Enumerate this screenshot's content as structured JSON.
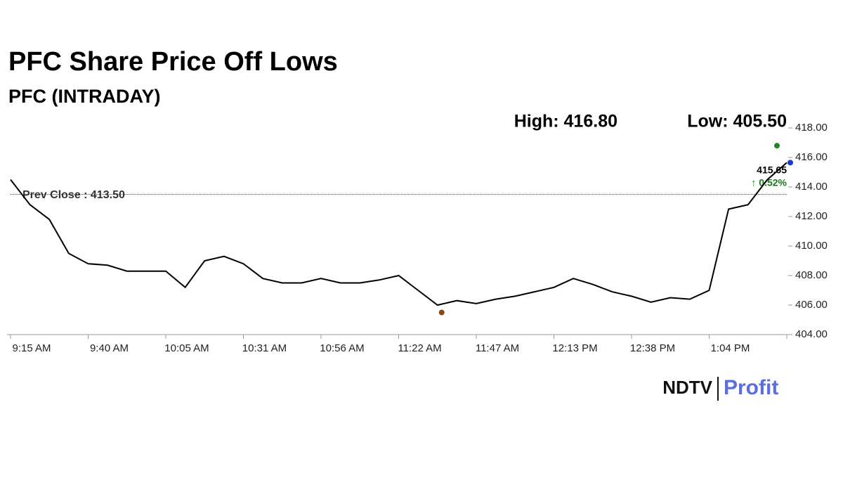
{
  "chart_data": {
    "type": "line",
    "title": "PFC Share Price Off Lows",
    "subtitle": "PFC (INTRADAY)",
    "categories": [
      "9:15 AM",
      null,
      null,
      null,
      "9:40 AM",
      null,
      null,
      null,
      "10:05 AM",
      null,
      null,
      null,
      "10:31 AM",
      null,
      null,
      null,
      "10:56 AM",
      null,
      null,
      null,
      "11:22 AM",
      null,
      null,
      null,
      "11:47 AM",
      null,
      null,
      null,
      "12:13 PM",
      null,
      null,
      null,
      "12:38 PM",
      null,
      null,
      null,
      "1:04 PM",
      null,
      null,
      null,
      null
    ],
    "series": [
      {
        "name": "PFC",
        "color": "#000000",
        "values": [
          414.5,
          412.8,
          411.8,
          409.5,
          408.8,
          408.7,
          408.3,
          408.3,
          408.3,
          407.2,
          409.0,
          409.3,
          408.8,
          407.8,
          407.5,
          407.5,
          407.8,
          407.5,
          407.5,
          407.7,
          408.0,
          407.0,
          406.0,
          406.3,
          406.1,
          406.4,
          406.6,
          406.9,
          407.2,
          407.8,
          407.4,
          406.9,
          406.6,
          406.2,
          406.5,
          406.4,
          407.0,
          412.5,
          412.8,
          414.5,
          415.65
        ]
      }
    ],
    "ylim": [
      404,
      418
    ],
    "yticks": [
      {
        "value": 404,
        "label": "404.00"
      },
      {
        "value": 406,
        "label": "406.00"
      },
      {
        "value": 408,
        "label": "408.00"
      },
      {
        "value": 410,
        "label": "410.00"
      },
      {
        "value": 412,
        "label": "412.00"
      },
      {
        "value": 414,
        "label": "414.00"
      },
      {
        "value": 416,
        "label": "416.00"
      },
      {
        "value": 418,
        "label": "418.00"
      }
    ],
    "high": {
      "label": "High: 416.80",
      "value": 416.8
    },
    "low": {
      "label": "Low: 405.50",
      "value": 405.5
    },
    "prev_close": {
      "label": "Prev Close : 413.50",
      "value": 413.5
    },
    "last": {
      "label": "415.65",
      "value": 415.65,
      "change": "↑ 0.52%"
    },
    "logo": [
      "NDTV",
      "Profit"
    ]
  }
}
